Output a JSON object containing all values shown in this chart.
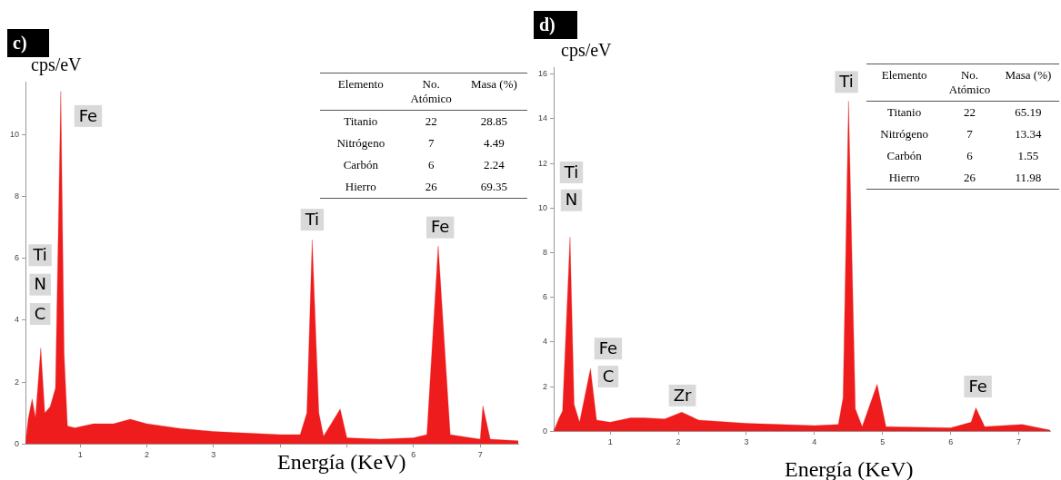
{
  "chart_data": [
    {
      "type": "area",
      "title": "c)",
      "xlabel": "Energía (KeV)",
      "ylabel": "cps/eV",
      "color": "#ee1c1c",
      "x": [
        0.18,
        0.22,
        0.28,
        0.33,
        0.41,
        0.47,
        0.55,
        0.63,
        0.71,
        0.76,
        0.81,
        0.92,
        1.2,
        1.5,
        1.75,
        2.0,
        2.5,
        3.0,
        3.5,
        4.0,
        4.3,
        4.4,
        4.48,
        4.58,
        4.65,
        4.9,
        5.0,
        5.5,
        6.0,
        6.2,
        6.37,
        6.55,
        7.0,
        7.04,
        7.15,
        7.57
      ],
      "values": [
        0,
        0.8,
        1.45,
        0.85,
        3.1,
        1.0,
        1.2,
        1.8,
        11.4,
        2.9,
        0.58,
        0.52,
        0.65,
        0.65,
        0.8,
        0.65,
        0.5,
        0.4,
        0.35,
        0.3,
        0.3,
        1.0,
        6.6,
        1.0,
        0.25,
        1.13,
        0.2,
        0.15,
        0.2,
        0.3,
        6.4,
        0.3,
        0.15,
        1.23,
        0.15,
        0.1
      ],
      "xlim": [
        0.18,
        7.57
      ],
      "ylim": [
        0,
        11.7
      ],
      "xticks": [
        1,
        2,
        3,
        {
          "value": 4,
          "label": null
        },
        {
          "value": 5,
          "label": null
        },
        6,
        7
      ],
      "yticks": [
        0,
        2,
        4,
        6,
        8,
        10
      ],
      "annotations": [
        "Fe",
        "Ti",
        "N",
        "C",
        "Ti",
        "Fe",
        "Elemento",
        "No. Atómico",
        "Masa (%)",
        "Titanio",
        "22",
        "28.85",
        "Nitrógeno",
        "7",
        "4.49",
        "Carbón",
        "6",
        "2.24",
        "Hierro",
        "26",
        "69.35"
      ]
    },
    {
      "type": "area",
      "title": "d)",
      "xlabel": "Energía (KeV)",
      "ylabel": "cps/eV",
      "color": "#ee1c1c",
      "x": [
        0.17,
        0.25,
        0.3,
        0.41,
        0.47,
        0.55,
        0.71,
        0.8,
        1.0,
        1.3,
        1.5,
        1.8,
        2.05,
        2.3,
        3.0,
        4.0,
        4.35,
        4.42,
        4.5,
        4.6,
        4.7,
        4.92,
        5.05,
        6.0,
        6.3,
        6.37,
        6.5,
        7.05,
        7.46
      ],
      "values": [
        0,
        0.6,
        0.9,
        8.7,
        1.2,
        0.4,
        2.8,
        0.5,
        0.4,
        0.6,
        0.6,
        0.55,
        0.85,
        0.5,
        0.35,
        0.25,
        0.3,
        1.5,
        14.8,
        1.0,
        0.2,
        2.1,
        0.2,
        0.15,
        0.4,
        1.05,
        0.2,
        0.3,
        0.05
      ],
      "xlim": [
        0.17,
        7.46
      ],
      "ylim": [
        0,
        16.3
      ],
      "xticks": [
        1,
        2,
        3,
        4,
        5,
        6,
        7
      ],
      "yticks": [
        0,
        2,
        4,
        6,
        8,
        10,
        12,
        14,
        16
      ],
      "annotations": [
        "Ti",
        "Ti",
        "N",
        "Fe",
        "C",
        "Fe",
        "Zr",
        "Elemento",
        "No. Atómico",
        "Masa (%)",
        "Titanio",
        "22",
        "65.19",
        "Nitrógeno",
        "7",
        "13.34",
        "Carbón",
        "6",
        "1.55",
        "Hierro",
        "26",
        "11.98"
      ]
    }
  ]
}
